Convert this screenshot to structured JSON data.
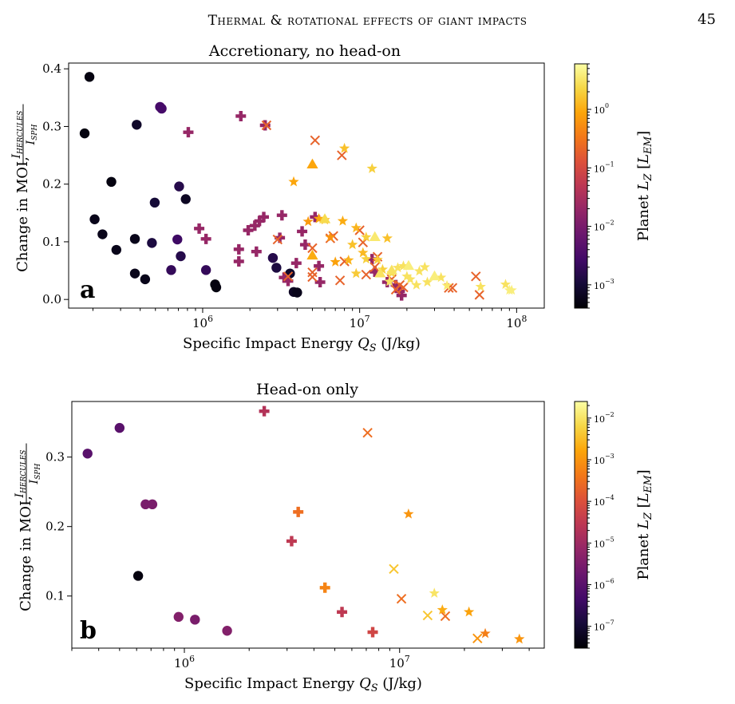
{
  "page_header": {
    "title": "Thermal & rotational effects of giant impacts",
    "page_number": "45"
  },
  "chart_data": [
    {
      "type": "scatter",
      "panel_label": "a",
      "title": "Accretionary, no head-on",
      "xlabel": "Specific Impact Energy Q_S (J/kg)",
      "ylabel": "Change in MOI, I_HERCULES / I_SPH",
      "xscale": "log",
      "xlim": [
        140000,
        150000000
      ],
      "ylim": [
        -0.015,
        0.41
      ],
      "xticks": [
        {
          "v": 1000000,
          "label": "10^6"
        },
        {
          "v": 10000000,
          "label": "10^7"
        },
        {
          "v": 100000000,
          "label": "10^8"
        }
      ],
      "yticks": [
        {
          "v": 0.0,
          "label": "0.0"
        },
        {
          "v": 0.1,
          "label": "0.1"
        },
        {
          "v": 0.2,
          "label": "0.2"
        },
        {
          "v": 0.3,
          "label": "0.3"
        },
        {
          "v": 0.4,
          "label": "0.4"
        }
      ],
      "colorbar": {
        "label": "Planet L_Z [L_EM]",
        "scale": "log",
        "min": 0.0004,
        "max": 6,
        "ticks": [
          {
            "v": 0.001,
            "label": "10^-3"
          },
          {
            "v": 0.01,
            "label": "10^-2"
          },
          {
            "v": 0.1,
            "label": "10^-1"
          },
          {
            "v": 1,
            "label": "10^0"
          }
        ]
      },
      "series": [
        {
          "marker": "circle",
          "points": [
            [
              190000,
              0.386,
              0.0005
            ],
            [
              177000,
              0.288,
              0.0005
            ],
            [
              380000,
              0.303,
              0.0008
            ],
            [
              535000,
              0.334,
              0.003
            ],
            [
              548000,
              0.331,
              0.003
            ],
            [
              262000,
              0.204,
              0.0005
            ],
            [
              708000,
              0.196,
              0.0015
            ],
            [
              780000,
              0.174,
              0.0007
            ],
            [
              495000,
              0.168,
              0.001
            ],
            [
              205000,
              0.139,
              0.0006
            ],
            [
              230000,
              0.113,
              0.0006
            ],
            [
              370000,
              0.105,
              0.0006
            ],
            [
              475000,
              0.098,
              0.0012
            ],
            [
              690000,
              0.104,
              0.0025
            ],
            [
              282000,
              0.086,
              0.0006
            ],
            [
              725000,
              0.075,
              0.0015
            ],
            [
              1050000,
              0.051,
              0.002
            ],
            [
              630000,
              0.051,
              0.002
            ],
            [
              370000,
              0.045,
              0.0006
            ],
            [
              430000,
              0.035,
              0.0006
            ],
            [
              1200000,
              0.026,
              0.0005
            ],
            [
              1220000,
              0.021,
              0.0005
            ],
            [
              2800000,
              0.072,
              0.0015
            ],
            [
              2950000,
              0.055,
              0.0012
            ],
            [
              3600000,
              0.045,
              0.0008
            ],
            [
              3800000,
              0.013,
              0.0007
            ],
            [
              4000000,
              0.012,
              0.0006
            ]
          ]
        },
        {
          "marker": "plus",
          "points": [
            [
              1750000,
              0.318,
              0.02
            ],
            [
              810000,
              0.29,
              0.02
            ],
            [
              2500000,
              0.302,
              0.02
            ],
            [
              950000,
              0.123,
              0.02
            ],
            [
              1050000,
              0.105,
              0.02
            ],
            [
              1700000,
              0.087,
              0.02
            ],
            [
              1700000,
              0.066,
              0.02
            ],
            [
              1950000,
              0.12,
              0.02
            ],
            [
              2150000,
              0.128,
              0.02
            ],
            [
              2300000,
              0.136,
              0.02
            ],
            [
              2450000,
              0.143,
              0.02
            ],
            [
              3200000,
              0.146,
              0.02
            ],
            [
              2200000,
              0.083,
              0.02
            ],
            [
              3100000,
              0.107,
              0.02
            ],
            [
              3950000,
              0.063,
              0.02
            ],
            [
              3300000,
              0.038,
              0.02
            ],
            [
              3500000,
              0.032,
              0.02
            ],
            [
              4300000,
              0.118,
              0.02
            ],
            [
              4500000,
              0.095,
              0.02
            ],
            [
              5200000,
              0.143,
              0.02
            ],
            [
              5500000,
              0.058,
              0.02
            ],
            [
              5600000,
              0.03,
              0.02
            ],
            [
              12000000,
              0.07,
              0.02
            ],
            [
              12500000,
              0.048,
              0.02
            ],
            [
              15000000,
              0.03,
              0.02
            ],
            [
              17000000,
              0.025,
              0.02
            ],
            [
              18000000,
              0.014,
              0.02
            ],
            [
              18500000,
              0.007,
              0.02
            ]
          ]
        },
        {
          "marker": "x",
          "points": [
            [
              2550000,
              0.302,
              0.2
            ],
            [
              5200000,
              0.276,
              0.2
            ],
            [
              7700000,
              0.25,
              0.2
            ],
            [
              3000000,
              0.104,
              0.2
            ],
            [
              3500000,
              0.04,
              0.2
            ],
            [
              5000000,
              0.039,
              0.2
            ],
            [
              5000000,
              0.047,
              0.2
            ],
            [
              5000000,
              0.089,
              0.2
            ],
            [
              6500000,
              0.106,
              0.2
            ],
            [
              6800000,
              0.11,
              0.2
            ],
            [
              10000000,
              0.12,
              0.2
            ],
            [
              10500000,
              0.099,
              0.2
            ],
            [
              8000000,
              0.066,
              0.2
            ],
            [
              7500000,
              0.033,
              0.2
            ],
            [
              11000000,
              0.043,
              0.2
            ],
            [
              12500000,
              0.056,
              0.2
            ],
            [
              13000000,
              0.074,
              0.2
            ],
            [
              16000000,
              0.035,
              0.2
            ],
            [
              18000000,
              0.025,
              0.2
            ],
            [
              19000000,
              0.021,
              0.2
            ],
            [
              17000000,
              0.017,
              0.2
            ],
            [
              37000000,
              0.02,
              0.2
            ],
            [
              39000000,
              0.02,
              0.2
            ],
            [
              55000000,
              0.04,
              0.2
            ],
            [
              58000000,
              0.008,
              0.2
            ]
          ]
        },
        {
          "marker": "star",
          "points": [
            [
              8000000,
              0.262,
              1.5
            ],
            [
              12000000,
              0.227,
              2
            ],
            [
              3800000,
              0.204,
              0.9
            ],
            [
              4700000,
              0.135,
              0.7
            ],
            [
              5500000,
              0.14,
              0.9
            ],
            [
              6000000,
              0.138,
              1.2
            ],
            [
              7800000,
              0.136,
              1
            ],
            [
              9500000,
              0.124,
              1.2
            ],
            [
              11000000,
              0.108,
              2
            ],
            [
              15000000,
              0.106,
              1.5
            ],
            [
              9000000,
              0.095,
              1.5
            ],
            [
              10500000,
              0.081,
              1.3
            ],
            [
              8500000,
              0.068,
              1.2
            ],
            [
              11000000,
              0.07,
              2
            ],
            [
              13000000,
              0.069,
              1.8
            ],
            [
              14000000,
              0.052,
              2
            ],
            [
              15500000,
              0.031,
              3
            ],
            [
              17500000,
              0.055,
              3
            ],
            [
              20000000,
              0.04,
              3
            ],
            [
              21000000,
              0.035,
              3
            ],
            [
              24000000,
              0.049,
              3
            ],
            [
              26000000,
              0.056,
              3
            ],
            [
              27000000,
              0.03,
              3
            ],
            [
              33000000,
              0.038,
              3
            ],
            [
              59000000,
              0.022,
              3
            ],
            [
              85000000,
              0.026,
              3
            ],
            [
              90000000,
              0.016,
              4
            ],
            [
              93000000,
              0.016,
              4
            ],
            [
              6500000,
              0.108,
              0.6
            ],
            [
              7000000,
              0.065,
              0.8
            ],
            [
              9500000,
              0.045,
              1.8
            ],
            [
              16000000,
              0.046,
              2.5
            ],
            [
              19000000,
              0.058,
              3
            ],
            [
              23000000,
              0.025,
              3
            ],
            [
              36000000,
              0.024,
              3.5
            ]
          ]
        },
        {
          "marker": "triangle",
          "points": [
            [
              5000000,
              0.234,
              0.9
            ],
            [
              6000000,
              0.139,
              2.5
            ],
            [
              5000000,
              0.076,
              1
            ],
            [
              12500000,
              0.108,
              3.5
            ],
            [
              16000000,
              0.05,
              3
            ],
            [
              20500000,
              0.058,
              4
            ],
            [
              30000000,
              0.04,
              4
            ],
            [
              13500000,
              0.045,
              3
            ]
          ]
        }
      ]
    },
    {
      "type": "scatter",
      "panel_label": "b",
      "title": "Head-on only",
      "xlabel": "Specific Impact Energy Q_S (J/kg)",
      "ylabel": "Change in MOI, I_HERCULES / I_SPH",
      "xscale": "log",
      "xlim": [
        300000,
        47000000
      ],
      "ylim": [
        0.025,
        0.38
      ],
      "xticks": [
        {
          "v": 1000000,
          "label": "10^6"
        },
        {
          "v": 10000000,
          "label": "10^7"
        }
      ],
      "yticks": [
        {
          "v": 0.1,
          "label": "0.1"
        },
        {
          "v": 0.2,
          "label": "0.2"
        },
        {
          "v": 0.3,
          "label": "0.3"
        }
      ],
      "colorbar": {
        "label": "Planet L_Z [L_EM]",
        "scale": "log",
        "min": 3e-08,
        "max": 0.025,
        "ticks": [
          {
            "v": 1e-07,
            "label": "10^-7"
          },
          {
            "v": 1e-06,
            "label": "10^-6"
          },
          {
            "v": 1e-05,
            "label": "10^-5"
          },
          {
            "v": 0.0001,
            "label": "10^-4"
          },
          {
            "v": 0.001,
            "label": "10^-3"
          },
          {
            "v": 0.01,
            "label": "10^-2"
          }
        ]
      },
      "series": [
        {
          "marker": "circle",
          "points": [
            [
              355000,
              0.305,
              1e-06
            ],
            [
              500000,
              0.342,
              1e-06
            ],
            [
              660000,
              0.232,
              3e-06
            ],
            [
              710000,
              0.232,
              3e-06
            ],
            [
              610000,
              0.129,
              4e-08
            ],
            [
              940000,
              0.07,
              4e-06
            ],
            [
              1120000,
              0.066,
              3e-06
            ],
            [
              1580000,
              0.05,
              4e-06
            ]
          ]
        },
        {
          "marker": "plus",
          "points": [
            [
              2350000,
              0.366,
              2e-05
            ],
            [
              3380000,
              0.221,
              0.0003
            ],
            [
              3150000,
              0.179,
              3e-05
            ],
            [
              4500000,
              0.112,
              0.0006
            ],
            [
              5400000,
              0.077,
              3e-05
            ],
            [
              7500000,
              0.048,
              6e-05
            ]
          ]
        },
        {
          "marker": "x",
          "points": [
            [
              7100000,
              0.335,
              0.0003
            ],
            [
              9400000,
              0.139,
              0.004
            ],
            [
              10200000,
              0.096,
              0.0003
            ],
            [
              13500000,
              0.072,
              0.004
            ],
            [
              16300000,
              0.071,
              0.0003
            ],
            [
              23000000,
              0.039,
              0.001
            ]
          ]
        },
        {
          "marker": "star",
          "points": [
            [
              11000000,
              0.218,
              0.001
            ],
            [
              14500000,
              0.104,
              0.01
            ],
            [
              15800000,
              0.08,
              0.002
            ],
            [
              21000000,
              0.077,
              0.0015
            ],
            [
              25000000,
              0.046,
              0.0005
            ],
            [
              36000000,
              0.038,
              0.001
            ]
          ]
        }
      ]
    }
  ]
}
